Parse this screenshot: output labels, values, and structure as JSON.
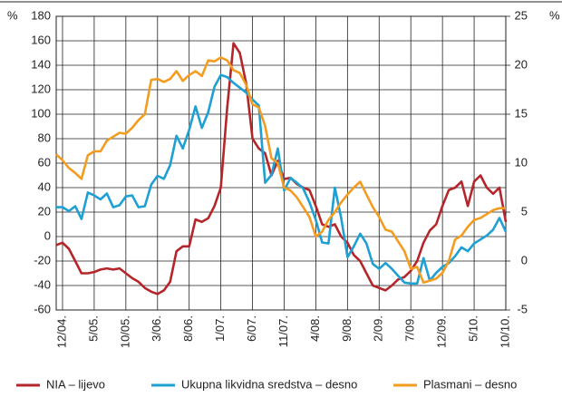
{
  "chart_data": {
    "type": "line",
    "y_label": "%",
    "y2_label": "%",
    "categories": [
      null,
      "12/04.",
      null,
      null,
      null,
      null,
      "5/05.",
      null,
      null,
      null,
      null,
      "10/05.",
      null,
      null,
      null,
      null,
      "3/06.",
      null,
      null,
      null,
      null,
      "8/06.",
      null,
      null,
      null,
      null,
      "1/07.",
      null,
      null,
      null,
      null,
      "6/07.",
      null,
      null,
      null,
      null,
      "11/07.",
      null,
      null,
      null,
      null,
      "4/08.",
      null,
      null,
      null,
      null,
      "9/08.",
      null,
      null,
      null,
      null,
      "2/09.",
      null,
      null,
      null,
      null,
      "7/09.",
      null,
      null,
      null,
      null,
      "12/09.",
      null,
      null,
      null,
      null,
      "5/10.",
      null,
      null,
      null,
      null,
      "10/10."
    ],
    "series": [
      {
        "name": "NIA – lijevo",
        "color": "#b5262b",
        "axis": "y",
        "values": [
          -7,
          -5,
          -10,
          -20,
          -30,
          -30,
          -29,
          -27,
          -26,
          -27,
          -26,
          -30,
          -34,
          -37,
          -42,
          -45,
          -47,
          -44,
          -37,
          -12,
          -8,
          -8,
          14,
          12,
          15,
          25,
          40,
          105,
          158,
          150,
          125,
          80,
          72,
          68,
          50,
          62,
          47,
          48,
          43,
          40,
          38,
          25,
          10,
          8,
          10,
          0,
          -5,
          -15,
          -20,
          -30,
          -40,
          -42,
          -44,
          -40,
          -35,
          -33,
          -28,
          -20,
          -5,
          5,
          10,
          25,
          38,
          40,
          45,
          25,
          45,
          50,
          40,
          35,
          40,
          12
        ]
      },
      {
        "name": "Ukupna likvidna sredstva – desno",
        "color": "#1ea0d2",
        "axis": "y2",
        "values": [
          5.5,
          5.5,
          5.1,
          5.6,
          4.3,
          7.0,
          6.7,
          6.3,
          6.9,
          5.5,
          5.7,
          6.6,
          6.7,
          5.5,
          5.6,
          7.8,
          8.7,
          8.4,
          9.8,
          12.8,
          11.5,
          13.4,
          15.8,
          13.6,
          15.2,
          17.8,
          19.0,
          18.8,
          18.2,
          17.7,
          17.2,
          16.5,
          15.9,
          8.0,
          8.8,
          11.5,
          7.2,
          8.5,
          8.0,
          7.4,
          6.0,
          4.2,
          1.9,
          1.8,
          7.5,
          4.4,
          0.4,
          1.5,
          2.8,
          1.8,
          -0.3,
          -0.8,
          -0.2,
          -0.8,
          -1.5,
          -2.2,
          -2.3,
          -2.3,
          0.3,
          -2.0,
          -1.2,
          -0.6,
          -0.2,
          0.5,
          1.4,
          1.0,
          1.8,
          2.2,
          2.6,
          3.2,
          4.4,
          3.0
        ]
      },
      {
        "name": "Plasmani – desno",
        "color": "#f39c20",
        "axis": "y2",
        "values": [
          10.9,
          10.3,
          9.5,
          9.0,
          8.4,
          10.8,
          11.2,
          11.2,
          12.3,
          12.7,
          13.1,
          13.0,
          13.6,
          14.4,
          15.0,
          18.5,
          18.6,
          18.3,
          18.6,
          19.4,
          18.4,
          19.0,
          19.4,
          18.9,
          20.5,
          20.4,
          20.8,
          20.5,
          19.5,
          19.2,
          18.0,
          16.0,
          15.7,
          13.8,
          10.5,
          10.0,
          7.5,
          7.2,
          6.5,
          5.5,
          4.5,
          2.5,
          3.0,
          4.2,
          5.0,
          6.0,
          6.8,
          7.5,
          8.1,
          6.8,
          5.5,
          4.5,
          3.2,
          3.0,
          2.0,
          1.0,
          -0.8,
          -0.6,
          -2.2,
          -2.0,
          -1.8,
          -1.2,
          0.0,
          2.2,
          2.6,
          3.5,
          4.2,
          4.4,
          4.8,
          5.2,
          5.4,
          5.4
        ]
      }
    ],
    "ylim": [
      -60,
      180
    ],
    "yticks": [
      -60,
      -40,
      -20,
      0,
      20,
      40,
      60,
      80,
      100,
      120,
      140,
      160,
      180
    ],
    "y2lim": [
      -5,
      25
    ],
    "y2ticks": [
      -5,
      0,
      5,
      10,
      15,
      20,
      25
    ],
    "grid": true,
    "legend": "bottom"
  }
}
